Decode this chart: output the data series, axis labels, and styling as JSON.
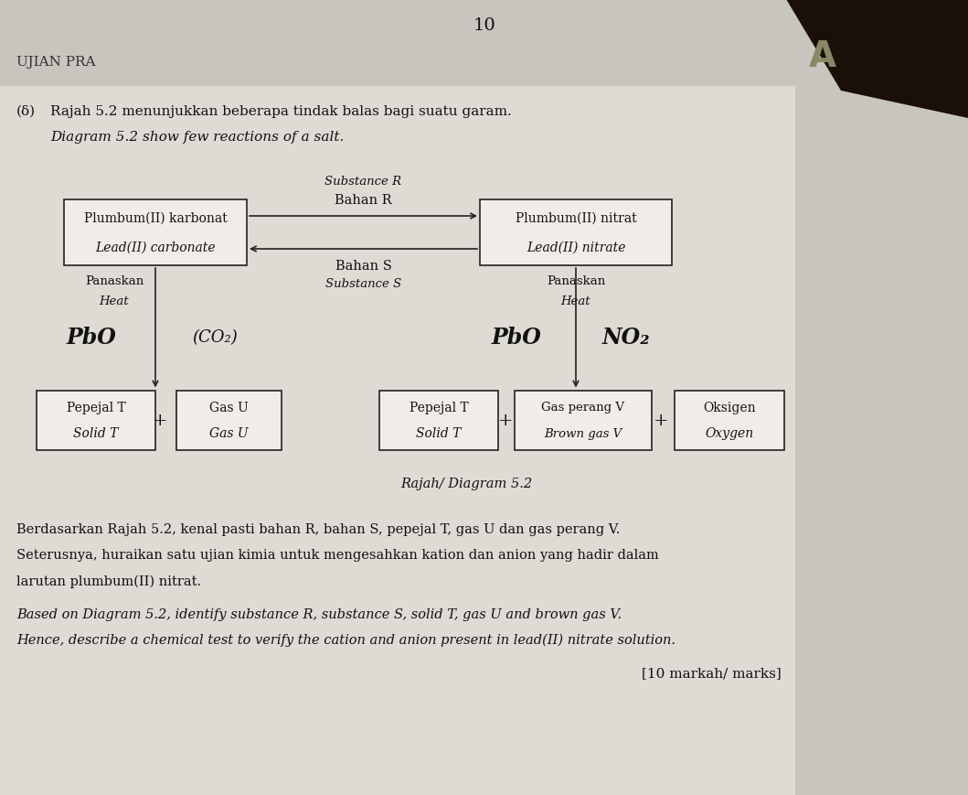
{
  "page_color": "#c8c4be",
  "paper_color": "#dedad4",
  "title_num": "10",
  "header_left": "UJIAN PRA",
  "question_prefix": "(δ)",
  "question_malay": "Rajah 5.2 menunjukkan beberapa tindak balas bagi suatu garam.",
  "question_english": "Diagram 5.2 show few reactions of a salt.",
  "bahan_r_label": "Bahan R",
  "substance_r_label": "Substance R",
  "bahan_s_label": "Bahan S",
  "substance_s_label": "Substance S",
  "box_lead_carbonate_line1": "Plumbum(II) karbonat",
  "box_lead_carbonate_line2": "Lead(II) carbonate",
  "box_lead_nitrate_line1": "Plumbum(II) nitrat",
  "box_lead_nitrate_line2": "Lead(II) nitrate",
  "pbo_left": "PbO",
  "co2_label": "(CO₂)",
  "pbo_right": "PbO",
  "no2_label": "NO₂",
  "box_solid_t_left_line1": "Pepejal T",
  "box_solid_t_left_line2": "Solid T",
  "box_gas_u_line1": "Gas U",
  "box_gas_u_line2": "Gas U",
  "box_solid_t_right_line1": "Pepejal T",
  "box_solid_t_right_line2": "Solid T",
  "box_brown_gas_line1": "Gas perang V",
  "box_brown_gas_line2": "Brown gas V",
  "box_oxygen_line1": "Oksigen",
  "box_oxygen_line2": "Oxygen",
  "diagram_label": "Rajah/ Diagram 5.2",
  "para1_line1": "Berdasarkan Rajah 5.2, kenal pasti bahan R, bahan S, pepejal T, gas U dan gas perang V.",
  "para1_line2": "Seterusnya, huraikan satu ujian kimia untuk mengesahkan kation dan anion yang hadir dalam",
  "para1_line3": "larutan plumbum(II) nitrat.",
  "para2_line1": "Based on Diagram 5.2, identify substance R, substance S, solid T, gas U and brown gas V.",
  "para2_line2": "Hence, describe a chemical test to verify the cation and anion present in lead(II) nitrate solution.",
  "marks_label": "[10 markah/ marks]",
  "box_color": "#f0ede8",
  "box_edge_color": "#222222",
  "text_color": "#111111",
  "arrow_color": "#222222",
  "dark_corner_color": "#1a1008"
}
